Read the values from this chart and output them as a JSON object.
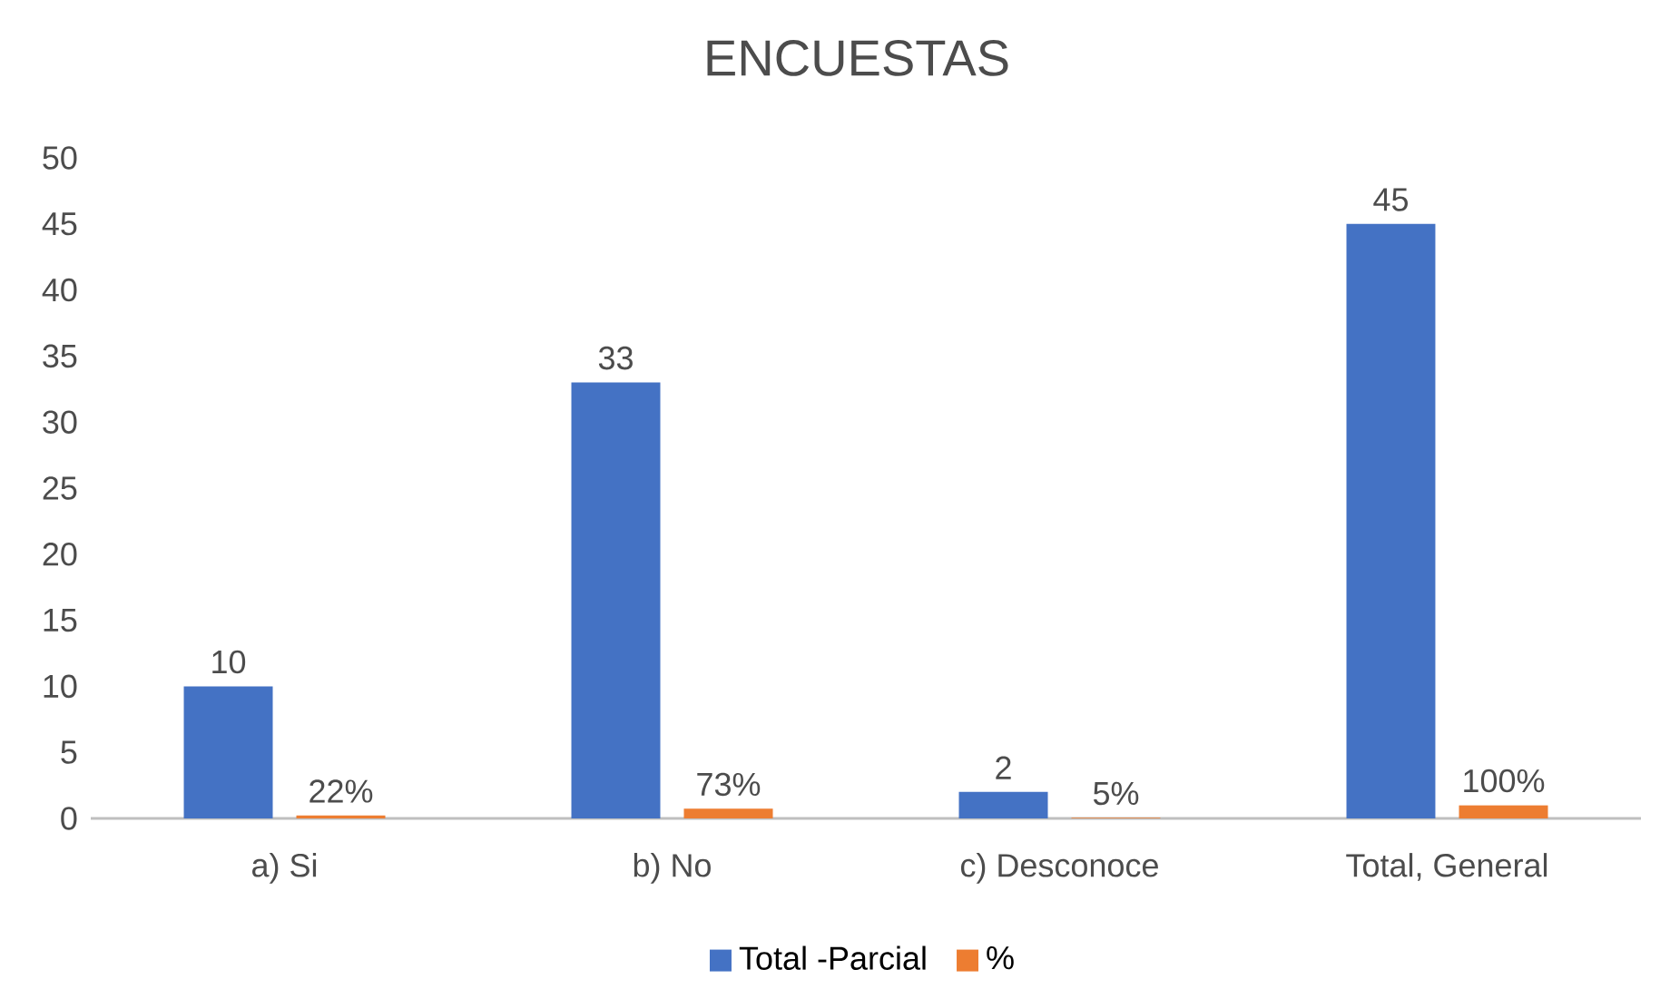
{
  "chart_data": {
    "type": "bar",
    "title": "ENCUESTAS",
    "categories": [
      "a) Si",
      "b) No",
      "c) Desconoce",
      "Total, General"
    ],
    "series": [
      {
        "name": "Total -Parcial",
        "color": "#4472c4",
        "values": [
          10,
          33,
          2,
          45
        ],
        "value_labels": [
          "10",
          "33",
          "2",
          "45"
        ]
      },
      {
        "name": "%",
        "color": "#ed7d31",
        "values": [
          0.22,
          0.73,
          0.05,
          1.0
        ],
        "value_labels": [
          "22%",
          "73%",
          "5%",
          "100%"
        ]
      }
    ],
    "ylim": [
      0,
      50
    ],
    "yticks": [
      0,
      5,
      10,
      15,
      20,
      25,
      30,
      35,
      40,
      45,
      50
    ],
    "legend": "bottom"
  }
}
